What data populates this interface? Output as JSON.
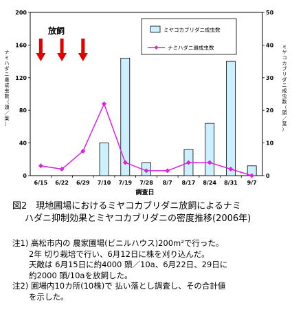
{
  "chart_data": {
    "type": "bar+line",
    "annotation": "放飼",
    "xlabel": "調査日",
    "ylabel_left": "ナミハダニ雌成虫数（頭／葉）",
    "ylabel_right": "ミヤコカブリダニ成虫数（頭／葉）",
    "categories": [
      "6/15",
      "6/22",
      "6/29",
      "7/10",
      "7/19",
      "7/28",
      "8/7",
      "8/17",
      "8/24",
      "8/31",
      "9/7"
    ],
    "ylim_left": [
      0,
      200
    ],
    "yticks_left": [
      "0",
      "40",
      "80",
      "120",
      "160",
      "200"
    ],
    "ylim_right": [
      0,
      50
    ],
    "yticks_right": [
      "0",
      "10",
      "20",
      "30",
      "40",
      "50"
    ],
    "series": [
      {
        "name": "ミヤコカブリダニ成虫数",
        "type": "bar",
        "axis": "right",
        "color": "#ccf0ff",
        "values": [
          0,
          0,
          0,
          10,
          36,
          4,
          0,
          8,
          16,
          35,
          3
        ]
      },
      {
        "name": "ナミハダニ雌成虫数",
        "type": "line",
        "axis": "left",
        "color": "#e020e0",
        "values": [
          12,
          8,
          30,
          88,
          16,
          6,
          6,
          16,
          16,
          8,
          0
        ]
      }
    ],
    "release_arrows": [
      "6/15",
      "6/22",
      "6/29"
    ]
  },
  "caption": {
    "line1": "図2　現地圃場におけるミヤコカブリダニ放飼によるナミ",
    "line2": "ハダニ抑制効果とミヤコカブリダニの密度推移(2006年)"
  },
  "notes": [
    "注1) 高松市内の 農家圃場(ビニルハウス)200m²で行った。",
    "2年 切り栽培で行い、6月12日に株を刈り込んだ。",
    "天敵は 6月15日に約4000 頭／10a、6月22日、29日に",
    "約2000 頭/10aを放飼した。",
    "注2) 圃場内10カ所(10株)で 払い落とし調査し、その合計値",
    "を示した。"
  ]
}
